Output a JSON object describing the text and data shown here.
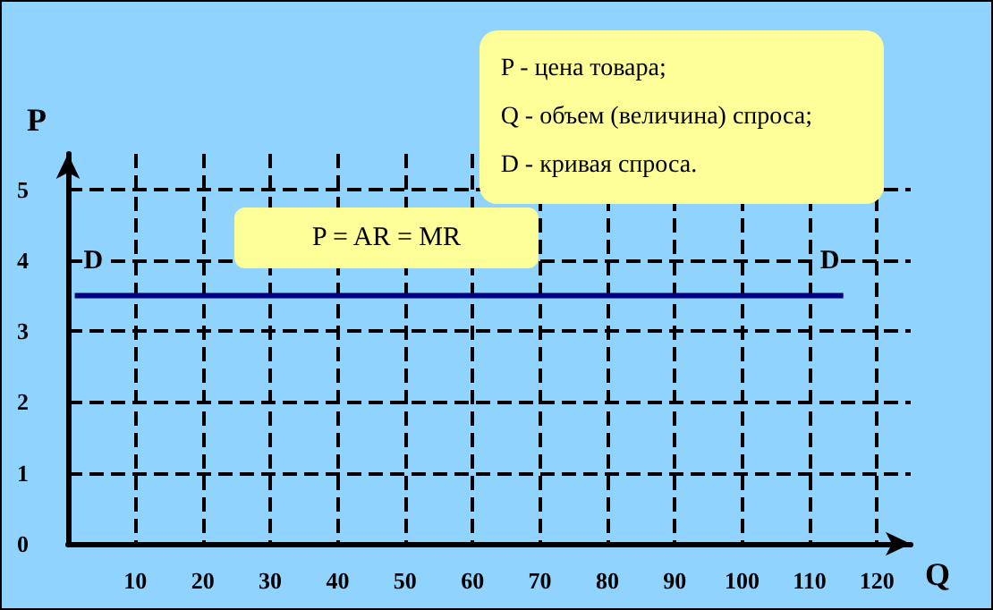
{
  "chart_data": {
    "type": "line",
    "xlabel": "Q",
    "ylabel": "P",
    "x": [
      1,
      115
    ],
    "series": [
      {
        "color": "#000080",
        "values": [
          3.5,
          3.5
        ]
      }
    ],
    "xlim": [
      0,
      125
    ],
    "xticks": [
      10,
      20,
      30,
      40,
      50,
      60,
      70,
      80,
      90,
      100,
      110,
      120
    ],
    "ylim": [
      0,
      5.5
    ],
    "yticks": [
      0,
      1,
      2,
      3,
      4,
      5
    ],
    "grid": true,
    "marker": "none",
    "line_style": "solid",
    "annotations": [
      "P - цена товара;\nQ - объем (величина) спроса;\nD - кривая спроса.",
      "P =  AR = MR",
      "D",
      "D"
    ]
  }
}
